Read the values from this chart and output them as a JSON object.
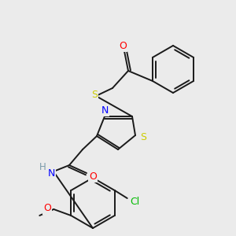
{
  "bg_color": "#ebebeb",
  "atom_colors": {
    "C": "#000000",
    "H": "#7a9aaa",
    "N": "#0000ff",
    "O": "#ff0000",
    "S": "#cccc00",
    "Cl": "#00bb00"
  },
  "bond_color": "#1a1a1a",
  "figsize": [
    3.0,
    3.0
  ],
  "dpi": 100
}
